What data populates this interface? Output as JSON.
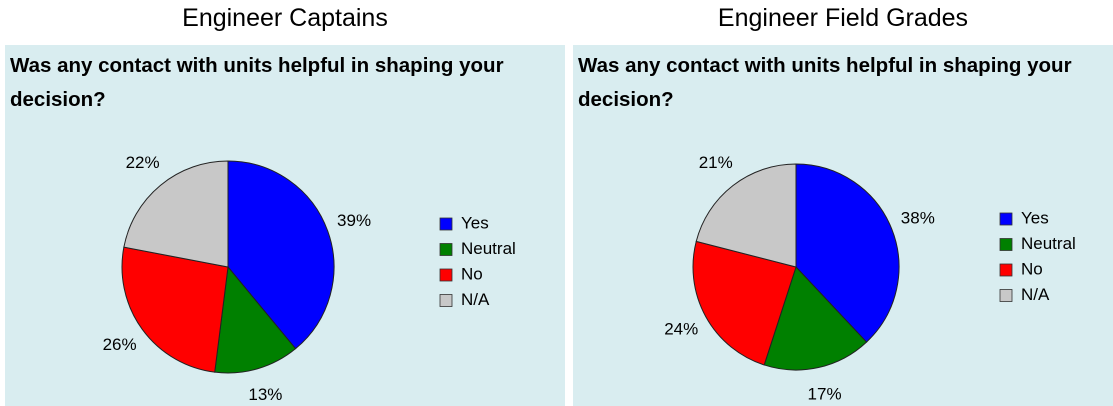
{
  "chart_data": [
    {
      "type": "pie",
      "title": "Engineer Captains",
      "subtitle": "Was any contact with units helpful in shaping your decision?",
      "categories": [
        "Yes",
        "Neutral",
        "No",
        "N/A"
      ],
      "values": [
        39,
        13,
        26,
        22
      ],
      "value_labels": [
        "39%",
        "13%",
        "26%",
        "22%"
      ],
      "colors": [
        "#0000ff",
        "#008000",
        "#ff0000",
        "#c8c8c8"
      ],
      "legend": "right"
    },
    {
      "type": "pie",
      "title": "Engineer Field Grades",
      "subtitle": "Was any contact with units helpful in shaping your decision?",
      "categories": [
        "Yes",
        "Neutral",
        "No",
        "N/A"
      ],
      "values": [
        38,
        17,
        24,
        21
      ],
      "value_labels": [
        "38%",
        "17%",
        "24%",
        "21%"
      ],
      "colors": [
        "#0000ff",
        "#008000",
        "#ff0000",
        "#c8c8c8"
      ],
      "legend": "right"
    }
  ]
}
